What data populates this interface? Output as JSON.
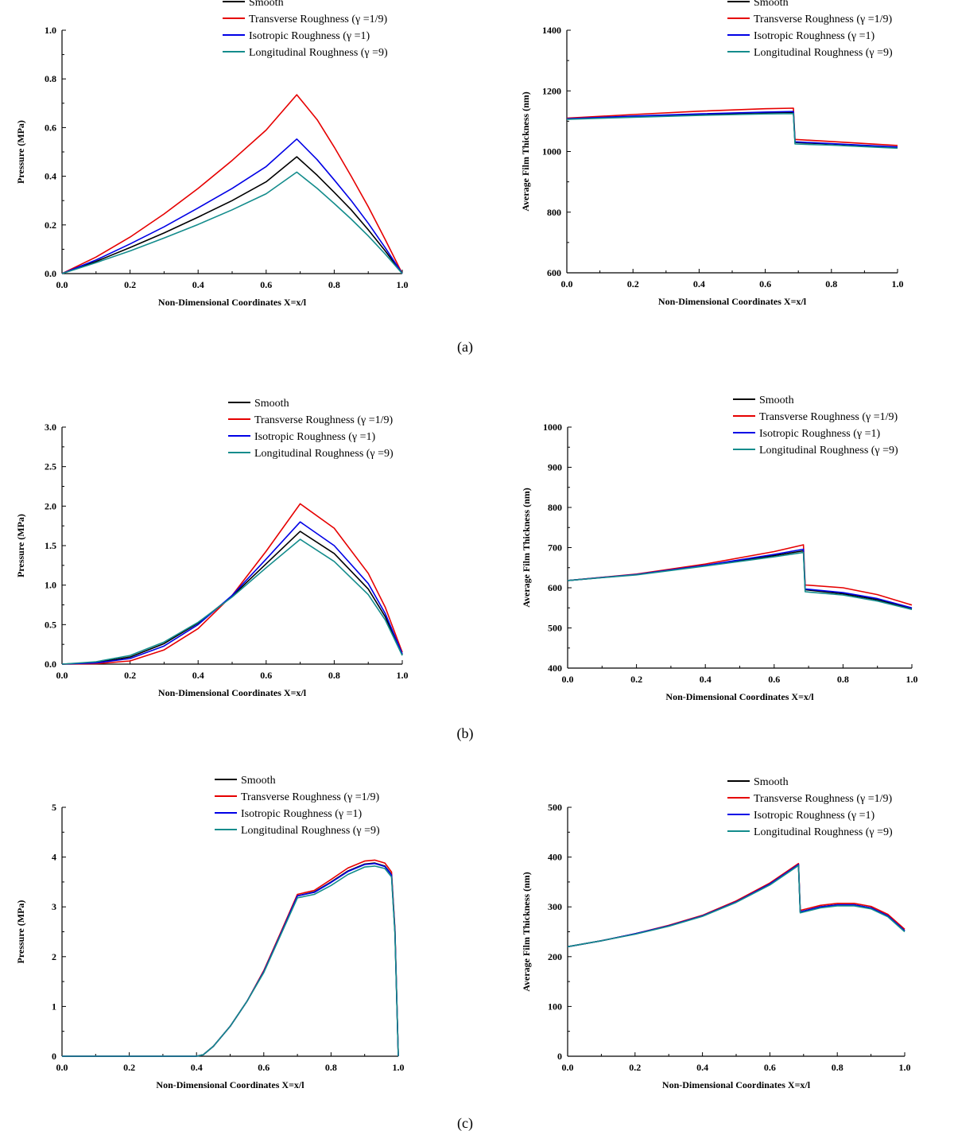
{
  "panel_labels": [
    "(a)",
    "(b)",
    "(c)"
  ],
  "chart_data": [
    {
      "type": "line",
      "title": "",
      "panel": "(a)",
      "xlabel": "Non-Dimensional Coordinates X=x/l",
      "ylabel": "Pressure (MPa)",
      "xlim": [
        0,
        1
      ],
      "ylim": [
        0,
        1
      ],
      "xticks": [
        "0.0",
        "0.2",
        "0.4",
        "0.6",
        "0.8",
        "1.0"
      ],
      "yticks": [
        "0.0",
        "0.2",
        "0.4",
        "0.6",
        "0.8",
        "1.0"
      ],
      "legend": [
        "Smooth",
        "Transverse Roughness (γ =1/9)",
        "Isotropic Roughness (γ =1)",
        "Longitudinal Roughness (γ =9)"
      ],
      "series": [
        {
          "name": "Smooth",
          "color": "#000000",
          "x": [
            0,
            0.1,
            0.2,
            0.3,
            0.4,
            0.5,
            0.6,
            0.69,
            0.75,
            0.8,
            0.85,
            0.9,
            0.95,
            1.0
          ],
          "y": [
            0,
            0.05,
            0.107,
            0.167,
            0.232,
            0.3,
            0.377,
            0.48,
            0.404,
            0.334,
            0.262,
            0.18,
            0.093,
            0
          ]
        },
        {
          "name": "Transverse Roughness (γ =1/9)",
          "color": "#e60000",
          "x": [
            0,
            0.1,
            0.2,
            0.3,
            0.4,
            0.5,
            0.6,
            0.69,
            0.75,
            0.8,
            0.85,
            0.9,
            0.95,
            1.0
          ],
          "y": [
            0,
            0.068,
            0.15,
            0.245,
            0.35,
            0.465,
            0.59,
            0.735,
            0.632,
            0.52,
            0.4,
            0.275,
            0.14,
            0
          ]
        },
        {
          "name": "Isotropic Roughness (γ =1)",
          "color": "#0000e6",
          "x": [
            0,
            0.1,
            0.2,
            0.3,
            0.4,
            0.5,
            0.6,
            0.69,
            0.75,
            0.8,
            0.85,
            0.9,
            0.95,
            1.0
          ],
          "y": [
            0,
            0.056,
            0.122,
            0.192,
            0.27,
            0.35,
            0.44,
            0.553,
            0.468,
            0.385,
            0.3,
            0.207,
            0.106,
            0
          ]
        },
        {
          "name": "Longitudinal Roughness (γ =9)",
          "color": "#138c8c",
          "x": [
            0,
            0.1,
            0.2,
            0.3,
            0.4,
            0.5,
            0.6,
            0.69,
            0.75,
            0.8,
            0.85,
            0.9,
            0.95,
            1.0
          ],
          "y": [
            0,
            0.045,
            0.093,
            0.146,
            0.202,
            0.262,
            0.328,
            0.417,
            0.35,
            0.288,
            0.224,
            0.155,
            0.08,
            0
          ]
        }
      ]
    },
    {
      "type": "line",
      "title": "",
      "panel": "(a)",
      "xlabel": "Non-Dimensional Coordinates X=x/l",
      "ylabel": "Average Film Thickness (nm)",
      "xlim": [
        0,
        1
      ],
      "ylim": [
        600,
        1400
      ],
      "xticks": [
        "0.0",
        "0.2",
        "0.4",
        "0.6",
        "0.8",
        "1.0"
      ],
      "yticks": [
        "600",
        "800",
        "1000",
        "1200",
        "1400"
      ],
      "legend": [
        "Smooth",
        "Transverse Roughness (γ =1/9)",
        "Isotropic Roughness (γ =1)",
        "Longitudinal Roughness (γ =9)"
      ],
      "series": [
        {
          "name": "Smooth",
          "color": "#000000",
          "x": [
            0,
            0.2,
            0.4,
            0.6,
            0.685,
            0.69,
            0.8,
            1.0
          ],
          "y": [
            1108,
            1115,
            1122,
            1128,
            1129,
            1030,
            1025,
            1014
          ]
        },
        {
          "name": "Transverse Roughness (γ =1/9)",
          "color": "#e60000",
          "x": [
            0,
            0.2,
            0.4,
            0.6,
            0.685,
            0.69,
            0.8,
            1.0
          ],
          "y": [
            1110,
            1122,
            1133,
            1141,
            1143,
            1040,
            1033,
            1020
          ]
        },
        {
          "name": "Isotropic Roughness (γ =1)",
          "color": "#0000e6",
          "x": [
            0,
            0.2,
            0.4,
            0.6,
            0.685,
            0.69,
            0.8,
            1.0
          ],
          "y": [
            1108,
            1117,
            1124,
            1130,
            1132,
            1032,
            1026,
            1015
          ]
        },
        {
          "name": "Longitudinal Roughness (γ =9)",
          "color": "#138c8c",
          "x": [
            0,
            0.2,
            0.4,
            0.6,
            0.685,
            0.69,
            0.8,
            1.0
          ],
          "y": [
            1106,
            1113,
            1119,
            1124,
            1125,
            1025,
            1021,
            1011
          ]
        }
      ]
    },
    {
      "type": "line",
      "title": "",
      "panel": "(b)",
      "xlabel": "Non-Dimensional Coordinates X=x/l",
      "ylabel": "Pressure (MPa)",
      "xlim": [
        0,
        1
      ],
      "ylim": [
        0,
        3
      ],
      "xticks": [
        "0.0",
        "0.2",
        "0.4",
        "0.6",
        "0.8",
        "1.0"
      ],
      "yticks": [
        "0.0",
        "0.5",
        "1.0",
        "1.5",
        "2.0",
        "2.5",
        "3.0"
      ],
      "legend": [
        "Smooth",
        "Transverse Roughness (γ =1/9)",
        "Isotropic Roughness (γ =1)",
        "Longitudinal Roughness (γ =9)"
      ],
      "series": [
        {
          "name": "Smooth",
          "color": "#000000",
          "x": [
            0,
            0.1,
            0.2,
            0.3,
            0.4,
            0.5,
            0.6,
            0.7,
            0.8,
            0.9,
            0.95,
            1.0
          ],
          "y": [
            0,
            0.02,
            0.09,
            0.26,
            0.52,
            0.86,
            1.27,
            1.68,
            1.4,
            0.95,
            0.6,
            0.12
          ]
        },
        {
          "name": "Transverse Roughness (γ =1/9)",
          "color": "#e60000",
          "x": [
            0,
            0.1,
            0.2,
            0.3,
            0.4,
            0.5,
            0.6,
            0.7,
            0.8,
            0.9,
            0.95,
            1.0
          ],
          "y": [
            0,
            0.005,
            0.04,
            0.18,
            0.45,
            0.87,
            1.43,
            2.03,
            1.72,
            1.15,
            0.72,
            0.15
          ]
        },
        {
          "name": "Isotropic Roughness (γ =1)",
          "color": "#0000e6",
          "x": [
            0,
            0.1,
            0.2,
            0.3,
            0.4,
            0.5,
            0.6,
            0.7,
            0.8,
            0.9,
            0.95,
            1.0
          ],
          "y": [
            0,
            0.015,
            0.07,
            0.23,
            0.5,
            0.87,
            1.33,
            1.8,
            1.5,
            1.02,
            0.64,
            0.13
          ]
        },
        {
          "name": "Longitudinal Roughness (γ =9)",
          "color": "#138c8c",
          "x": [
            0,
            0.1,
            0.2,
            0.3,
            0.4,
            0.5,
            0.6,
            0.7,
            0.8,
            0.9,
            0.95,
            1.0
          ],
          "y": [
            0,
            0.03,
            0.11,
            0.28,
            0.53,
            0.85,
            1.22,
            1.58,
            1.3,
            0.88,
            0.56,
            0.11
          ]
        }
      ]
    },
    {
      "type": "line",
      "title": "",
      "panel": "(b)",
      "xlabel": "Non-Dimensional Coordinates X=x/l",
      "ylabel": "Average Film Thickness (nm)",
      "xlim": [
        0,
        1
      ],
      "ylim": [
        400,
        1000
      ],
      "xticks": [
        "0.0",
        "0.2",
        "0.4",
        "0.6",
        "0.8",
        "1.0"
      ],
      "yticks": [
        "400",
        "500",
        "600",
        "700",
        "800",
        "900",
        "1000"
      ],
      "legend": [
        "Smooth",
        "Transverse Roughness (γ =1/9)",
        "Isotropic Roughness (γ =1)",
        "Longitudinal Roughness (γ =9)"
      ],
      "series": [
        {
          "name": "Smooth",
          "color": "#000000",
          "x": [
            0,
            0.2,
            0.4,
            0.6,
            0.685,
            0.69,
            0.8,
            0.9,
            1.0
          ],
          "y": [
            618,
            633,
            655,
            680,
            692,
            595,
            585,
            570,
            548
          ]
        },
        {
          "name": "Transverse Roughness (γ =1/9)",
          "color": "#e60000",
          "x": [
            0,
            0.2,
            0.4,
            0.6,
            0.685,
            0.69,
            0.8,
            0.9,
            1.0
          ],
          "y": [
            618,
            634,
            659,
            690,
            707,
            607,
            600,
            583,
            557
          ]
        },
        {
          "name": "Isotropic Roughness (γ =1)",
          "color": "#0000e6",
          "x": [
            0,
            0.2,
            0.4,
            0.6,
            0.685,
            0.69,
            0.8,
            0.9,
            1.0
          ],
          "y": [
            618,
            633,
            656,
            683,
            696,
            597,
            588,
            573,
            550
          ]
        },
        {
          "name": "Longitudinal Roughness (γ =9)",
          "color": "#138c8c",
          "x": [
            0,
            0.2,
            0.4,
            0.6,
            0.685,
            0.69,
            0.8,
            0.9,
            1.0
          ],
          "y": [
            618,
            632,
            654,
            677,
            688,
            590,
            582,
            567,
            546
          ]
        }
      ]
    },
    {
      "type": "line",
      "title": "",
      "panel": "(c)",
      "xlabel": "Non-Dimensional Coordinates X=x/l",
      "ylabel": "Pressure (MPa)",
      "xlim": [
        0,
        1
      ],
      "ylim": [
        0,
        5
      ],
      "xticks": [
        "0.0",
        "0.2",
        "0.4",
        "0.6",
        "0.8",
        "1.0"
      ],
      "yticks": [
        "0",
        "1",
        "2",
        "3",
        "4",
        "5"
      ],
      "legend": [
        "Smooth",
        "Transverse Roughness (γ =1/9)",
        "Isotropic Roughness (γ =1)",
        "Longitudinal Roughness (γ =9)"
      ],
      "series": [
        {
          "name": "Smooth",
          "color": "#000000",
          "x": [
            0,
            0.4,
            0.42,
            0.45,
            0.5,
            0.55,
            0.6,
            0.65,
            0.7,
            0.75,
            0.8,
            0.85,
            0.9,
            0.93,
            0.96,
            0.98,
            0.99,
            1.0
          ],
          "y": [
            0,
            0,
            0.03,
            0.2,
            0.6,
            1.1,
            1.7,
            2.45,
            3.22,
            3.3,
            3.5,
            3.72,
            3.86,
            3.88,
            3.82,
            3.65,
            2.5,
            0
          ]
        },
        {
          "name": "Transverse Roughness (γ =1/9)",
          "color": "#e60000",
          "x": [
            0,
            0.4,
            0.42,
            0.45,
            0.5,
            0.55,
            0.6,
            0.65,
            0.7,
            0.75,
            0.8,
            0.85,
            0.9,
            0.93,
            0.96,
            0.98,
            0.99,
            1.0
          ],
          "y": [
            0,
            0,
            0.03,
            0.2,
            0.6,
            1.1,
            1.72,
            2.48,
            3.25,
            3.33,
            3.55,
            3.78,
            3.92,
            3.94,
            3.88,
            3.7,
            2.55,
            0
          ]
        },
        {
          "name": "Isotropic Roughness (γ =1)",
          "color": "#0000e6",
          "x": [
            0,
            0.4,
            0.42,
            0.45,
            0.5,
            0.55,
            0.6,
            0.65,
            0.7,
            0.75,
            0.8,
            0.85,
            0.9,
            0.93,
            0.96,
            0.98,
            0.99,
            1.0
          ],
          "y": [
            0,
            0,
            0.03,
            0.2,
            0.6,
            1.1,
            1.7,
            2.45,
            3.22,
            3.29,
            3.49,
            3.71,
            3.85,
            3.87,
            3.81,
            3.64,
            2.5,
            0
          ]
        },
        {
          "name": "Longitudinal Roughness (γ =9)",
          "color": "#138c8c",
          "x": [
            0,
            0.4,
            0.42,
            0.45,
            0.5,
            0.55,
            0.6,
            0.65,
            0.7,
            0.75,
            0.8,
            0.85,
            0.9,
            0.93,
            0.96,
            0.98,
            0.99,
            1.0
          ],
          "y": [
            0,
            0,
            0.03,
            0.2,
            0.6,
            1.1,
            1.68,
            2.43,
            3.18,
            3.25,
            3.43,
            3.65,
            3.8,
            3.82,
            3.77,
            3.6,
            2.45,
            0
          ]
        }
      ]
    },
    {
      "type": "line",
      "title": "",
      "panel": "(c)",
      "xlabel": "Non-Dimensional Coordinates X=x/l",
      "ylabel": "Average Film Thickness (nm)",
      "xlim": [
        0,
        1
      ],
      "ylim": [
        0,
        500
      ],
      "xticks": [
        "0.0",
        "0.2",
        "0.4",
        "0.6",
        "0.8",
        "1.0"
      ],
      "yticks": [
        "0",
        "100",
        "200",
        "300",
        "400",
        "500"
      ],
      "legend": [
        "Smooth",
        "Transverse Roughness (γ =1/9)",
        "Isotropic Roughness (γ =1)",
        "Longitudinal Roughness (γ =9)"
      ],
      "series": [
        {
          "name": "Smooth",
          "color": "#000000",
          "x": [
            0,
            0.1,
            0.2,
            0.3,
            0.4,
            0.5,
            0.6,
            0.685,
            0.69,
            0.75,
            0.8,
            0.85,
            0.9,
            0.95,
            1.0
          ],
          "y": [
            220,
            232,
            246,
            262,
            282,
            310,
            346,
            385,
            290,
            300,
            304,
            304,
            298,
            282,
            252
          ]
        },
        {
          "name": "Transverse Roughness (γ =1/9)",
          "color": "#e60000",
          "x": [
            0,
            0.1,
            0.2,
            0.3,
            0.4,
            0.5,
            0.6,
            0.685,
            0.69,
            0.75,
            0.8,
            0.85,
            0.9,
            0.95,
            1.0
          ],
          "y": [
            220,
            232,
            246,
            263,
            283,
            312,
            348,
            387,
            293,
            303,
            307,
            307,
            301,
            285,
            255
          ]
        },
        {
          "name": "Isotropic Roughness (γ =1)",
          "color": "#0000e6",
          "x": [
            0,
            0.1,
            0.2,
            0.3,
            0.4,
            0.5,
            0.6,
            0.685,
            0.69,
            0.75,
            0.8,
            0.85,
            0.9,
            0.95,
            1.0
          ],
          "y": [
            220,
            232,
            246,
            262,
            282,
            310,
            346,
            385,
            290,
            300,
            304,
            304,
            298,
            282,
            252
          ]
        },
        {
          "name": "Longitudinal Roughness (γ =9)",
          "color": "#138c8c",
          "x": [
            0,
            0.1,
            0.2,
            0.3,
            0.4,
            0.5,
            0.6,
            0.685,
            0.69,
            0.75,
            0.8,
            0.85,
            0.9,
            0.95,
            1.0
          ],
          "y": [
            220,
            232,
            245,
            261,
            281,
            309,
            344,
            383,
            288,
            298,
            302,
            302,
            296,
            280,
            250
          ]
        }
      ]
    }
  ]
}
